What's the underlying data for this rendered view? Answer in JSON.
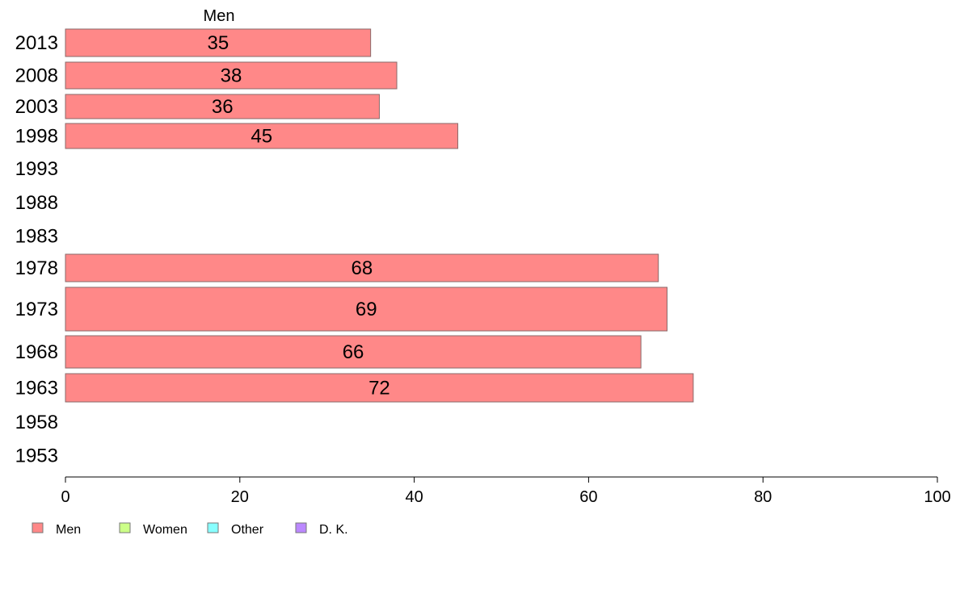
{
  "chart_data": {
    "type": "bar",
    "orientation": "horizontal",
    "series_label": "Men",
    "categories": [
      "2013",
      "2008",
      "2003",
      "1998",
      "1993",
      "1988",
      "1983",
      "1978",
      "1973",
      "1968",
      "1963",
      "1958",
      "1953"
    ],
    "series": [
      {
        "name": "Men",
        "color": "#ff8888",
        "values": [
          35,
          38,
          36,
          45,
          null,
          null,
          null,
          68,
          69,
          66,
          72,
          null,
          null
        ]
      }
    ],
    "xlim": [
      0,
      100
    ],
    "xticks": [
      0,
      20,
      40,
      60,
      80,
      100
    ],
    "grid": false,
    "legend_position": "bottom-left",
    "legend": [
      {
        "label": "Men",
        "color": "#ff8888"
      },
      {
        "label": "Women",
        "color": "#ccff88"
      },
      {
        "label": "Other",
        "color": "#88ffff"
      },
      {
        "label": "D. K.",
        "color": "#bb88ff"
      }
    ]
  }
}
